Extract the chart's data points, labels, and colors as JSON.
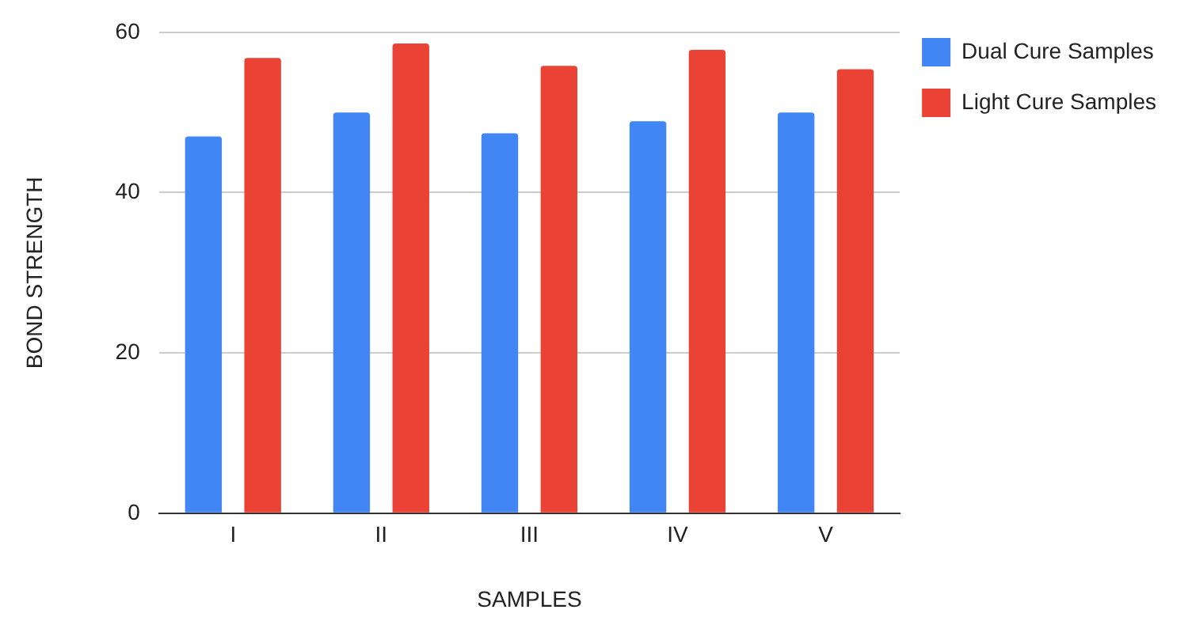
{
  "chart_data": {
    "type": "bar",
    "xlabel": "SAMPLES",
    "ylabel": "BOND STRENGTH",
    "categories": [
      "I",
      "II",
      "III",
      "IV",
      "V"
    ],
    "series": [
      {
        "name": "Dual Cure Samples",
        "color": "#4285f4",
        "values": [
          47,
          50,
          47.4,
          48.9,
          50
        ]
      },
      {
        "name": "Light Cure Samples",
        "color": "#ea4335",
        "values": [
          56.8,
          58.6,
          55.8,
          57.8,
          55.4
        ]
      }
    ],
    "ylim": [
      0,
      60
    ],
    "yticks": [
      0,
      20,
      40,
      60
    ],
    "grid": "y",
    "legend": "top right"
  }
}
